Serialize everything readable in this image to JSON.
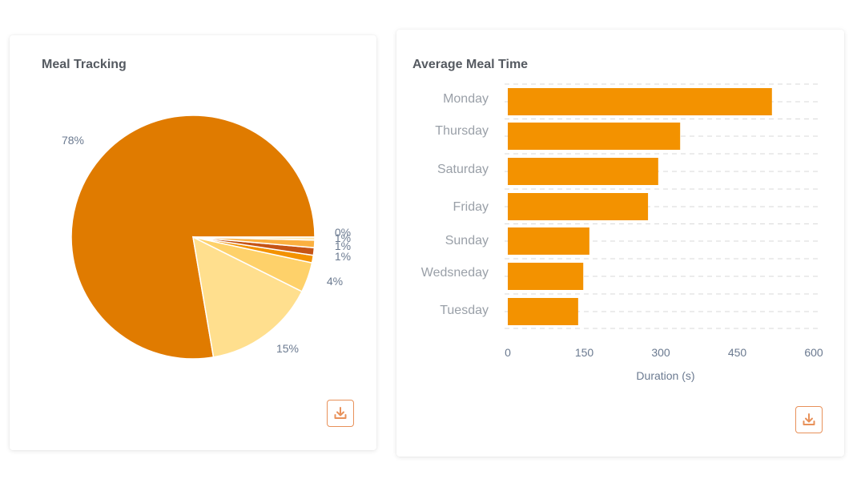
{
  "cards": [
    {
      "title": "Meal Tracking"
    },
    {
      "title": "Average Meal Time"
    }
  ],
  "icons": {
    "download": "download-icon"
  },
  "colors": {
    "accent": "#e8915a",
    "bar": "#f39200",
    "pie": [
      "#e07b00",
      "#ffdf8e",
      "#fed16a",
      "#f39200",
      "#c55415",
      "#fbb040",
      "#ffe9b0"
    ]
  },
  "chart_data": [
    {
      "type": "pie",
      "title": "Meal Tracking",
      "slices": [
        {
          "label": "78%",
          "value": 78
        },
        {
          "label": "15%",
          "value": 15
        },
        {
          "label": "4%",
          "value": 4
        },
        {
          "label": "1%",
          "value": 1
        },
        {
          "label": "1%",
          "value": 1
        },
        {
          "label": "1%",
          "value": 1
        },
        {
          "label": "0%",
          "value": 0.4
        }
      ]
    },
    {
      "type": "bar",
      "orientation": "horizontal",
      "title": "Average Meal Time",
      "categories": [
        "Monday",
        "Thursday",
        "Saturday",
        "Friday",
        "Sunday",
        "Wedsneday",
        "Tuesday"
      ],
      "values": [
        518,
        338,
        295,
        275,
        160,
        148,
        138
      ],
      "xlabel": "Duration (s)",
      "ylabel": "",
      "xlim": [
        0,
        600
      ],
      "xticks": [
        "0",
        "150",
        "300",
        "450",
        "600"
      ],
      "grid": true
    }
  ]
}
